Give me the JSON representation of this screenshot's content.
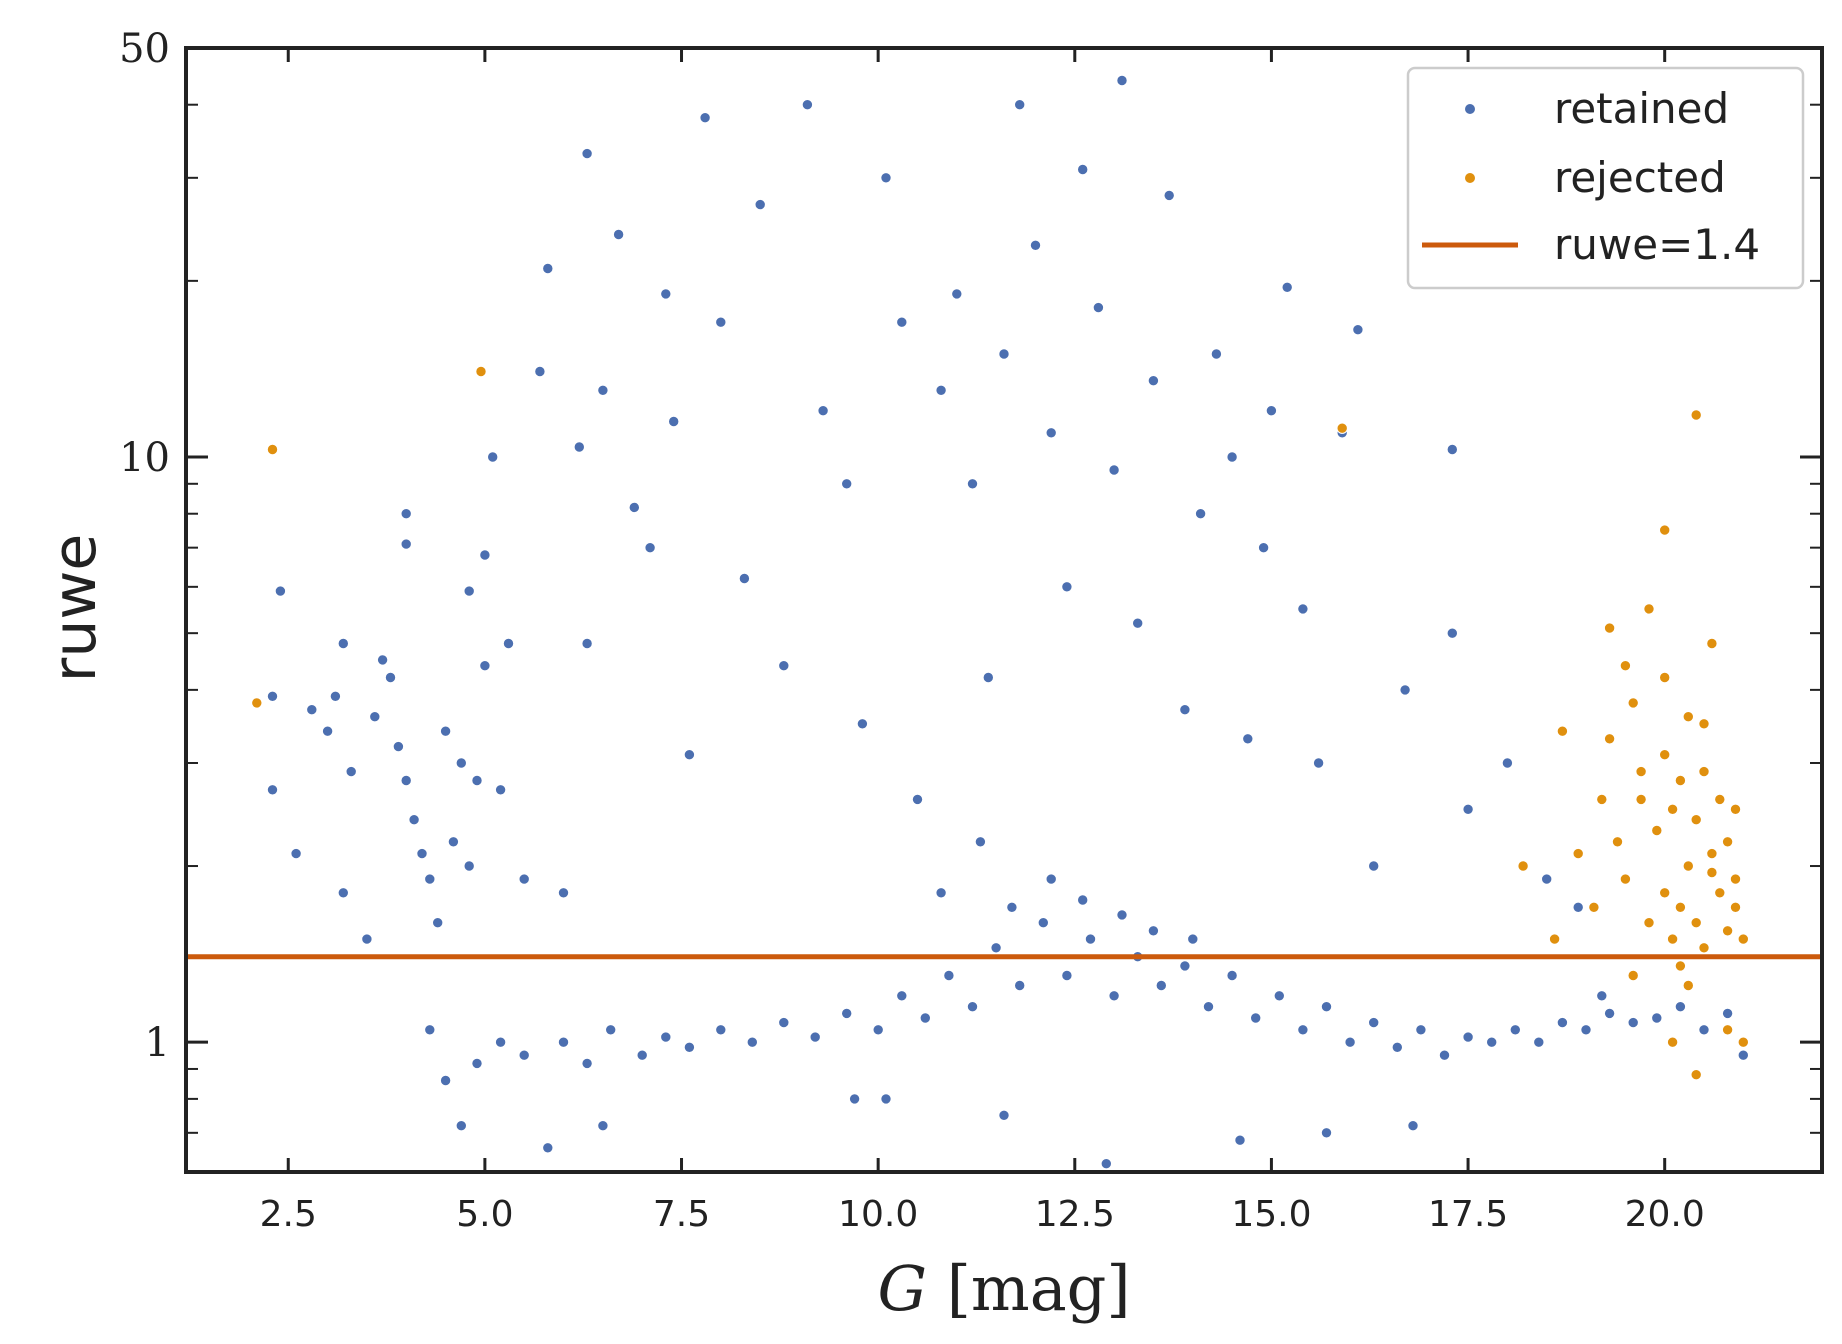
{
  "chart_data": {
    "type": "scatter",
    "title": "",
    "xlabel_italic": "G",
    "xlabel_rest": " [mag]",
    "ylabel": "ruwe",
    "xlim": [
      1.2,
      22.0
    ],
    "ylim": [
      0.6,
      50
    ],
    "yscale": "log",
    "x_ticks": [
      2.5,
      5.0,
      7.5,
      10.0,
      12.5,
      15.0,
      17.5,
      20.0
    ],
    "x_tick_labels": [
      "2.5",
      "5.0",
      "7.5",
      "10.0",
      "12.5",
      "15.0",
      "17.5",
      "20.0"
    ],
    "y_ticks": [
      1,
      10,
      50
    ],
    "y_tick_labels": [
      "1",
      "10",
      "50"
    ],
    "threshold": {
      "name": "ruwe=1.4",
      "value": 1.4,
      "color": "#cc5a0c"
    },
    "series": [
      {
        "name": "retained",
        "color": "#4c6fb0",
        "points": [
          [
            2.3,
            3.9
          ],
          [
            2.4,
            5.9
          ],
          [
            2.3,
            2.7
          ],
          [
            2.6,
            2.1
          ],
          [
            2.8,
            3.7
          ],
          [
            3.0,
            3.4
          ],
          [
            3.1,
            3.9
          ],
          [
            3.2,
            4.8
          ],
          [
            3.3,
            2.9
          ],
          [
            3.2,
            1.8
          ],
          [
            3.5,
            1.5
          ],
          [
            3.6,
            3.6
          ],
          [
            3.7,
            4.5
          ],
          [
            3.8,
            4.2
          ],
          [
            3.9,
            3.2
          ],
          [
            4.0,
            2.8
          ],
          [
            4.0,
            8.0
          ],
          [
            4.0,
            7.1
          ],
          [
            4.1,
            2.4
          ],
          [
            4.2,
            2.1
          ],
          [
            4.3,
            1.9
          ],
          [
            4.4,
            1.6
          ],
          [
            4.5,
            3.4
          ],
          [
            4.6,
            2.2
          ],
          [
            4.7,
            3.0
          ],
          [
            4.8,
            2.0
          ],
          [
            4.8,
            5.9
          ],
          [
            4.9,
            2.8
          ],
          [
            5.0,
            4.4
          ],
          [
            5.0,
            6.8
          ],
          [
            5.1,
            10.0
          ],
          [
            5.2,
            2.7
          ],
          [
            5.3,
            4.8
          ],
          [
            5.5,
            1.9
          ],
          [
            5.7,
            14.0
          ],
          [
            5.8,
            21.0
          ],
          [
            6.0,
            1.8
          ],
          [
            6.2,
            10.4
          ],
          [
            6.3,
            4.8
          ],
          [
            6.3,
            33.0
          ],
          [
            6.5,
            13.0
          ],
          [
            6.7,
            24.0
          ],
          [
            6.9,
            8.2
          ],
          [
            7.1,
            7.0
          ],
          [
            7.3,
            19.0
          ],
          [
            7.4,
            11.5
          ],
          [
            7.6,
            3.1
          ],
          [
            7.8,
            38.0
          ],
          [
            8.0,
            17.0
          ],
          [
            8.3,
            6.2
          ],
          [
            8.5,
            27.0
          ],
          [
            8.8,
            4.4
          ],
          [
            9.1,
            40.0
          ],
          [
            9.3,
            12.0
          ],
          [
            9.6,
            9.0
          ],
          [
            9.8,
            3.5
          ],
          [
            10.1,
            30.0
          ],
          [
            10.3,
            17.0
          ],
          [
            10.5,
            2.6
          ],
          [
            10.8,
            13.0
          ],
          [
            11.0,
            19.0
          ],
          [
            11.2,
            9.0
          ],
          [
            11.4,
            4.2
          ],
          [
            11.6,
            15.0
          ],
          [
            11.8,
            40.0
          ],
          [
            12.0,
            23.0
          ],
          [
            12.2,
            11.0
          ],
          [
            12.4,
            6.0
          ],
          [
            12.6,
            31.0
          ],
          [
            12.8,
            18.0
          ],
          [
            13.0,
            9.5
          ],
          [
            13.1,
            44.0
          ],
          [
            13.3,
            5.2
          ],
          [
            13.5,
            13.5
          ],
          [
            13.7,
            28.0
          ],
          [
            13.9,
            3.7
          ],
          [
            14.1,
            8.0
          ],
          [
            14.3,
            15.0
          ],
          [
            14.5,
            10.0
          ],
          [
            14.7,
            3.3
          ],
          [
            14.9,
            7.0
          ],
          [
            15.0,
            12.0
          ],
          [
            15.2,
            19.5
          ],
          [
            15.4,
            5.5
          ],
          [
            15.6,
            3.0
          ],
          [
            15.9,
            11.0
          ],
          [
            16.1,
            16.5
          ],
          [
            16.3,
            2.0
          ],
          [
            16.7,
            4.0
          ],
          [
            17.3,
            10.3
          ],
          [
            17.3,
            5.0
          ],
          [
            17.5,
            2.5
          ],
          [
            18.0,
            3.0
          ],
          [
            18.5,
            1.9
          ],
          [
            18.9,
            1.7
          ],
          [
            19.2,
            1.2
          ],
          [
            4.3,
            1.05
          ],
          [
            4.5,
            0.86
          ],
          [
            4.7,
            0.72
          ],
          [
            4.9,
            0.92
          ],
          [
            5.2,
            1.0
          ],
          [
            5.5,
            0.95
          ],
          [
            5.8,
            0.66
          ],
          [
            6.0,
            1.0
          ],
          [
            6.3,
            0.92
          ],
          [
            6.6,
            1.05
          ],
          [
            7.0,
            0.95
          ],
          [
            7.3,
            1.02
          ],
          [
            7.6,
            0.98
          ],
          [
            8.0,
            1.05
          ],
          [
            8.4,
            1.0
          ],
          [
            8.8,
            1.08
          ],
          [
            9.2,
            1.02
          ],
          [
            9.6,
            1.12
          ],
          [
            10.0,
            1.05
          ],
          [
            10.3,
            1.2
          ],
          [
            10.6,
            1.1
          ],
          [
            10.9,
            1.3
          ],
          [
            11.2,
            1.15
          ],
          [
            11.5,
            1.45
          ],
          [
            11.8,
            1.25
          ],
          [
            12.1,
            1.6
          ],
          [
            12.4,
            1.3
          ],
          [
            12.7,
            1.5
          ],
          [
            13.0,
            1.2
          ],
          [
            13.3,
            1.4
          ],
          [
            13.6,
            1.25
          ],
          [
            13.9,
            1.35
          ],
          [
            14.2,
            1.15
          ],
          [
            14.5,
            1.3
          ],
          [
            14.8,
            1.1
          ],
          [
            15.1,
            1.2
          ],
          [
            15.4,
            1.05
          ],
          [
            15.7,
            1.15
          ],
          [
            16.0,
            1.0
          ],
          [
            16.3,
            1.08
          ],
          [
            16.6,
            0.98
          ],
          [
            16.9,
            1.05
          ],
          [
            17.2,
            0.95
          ],
          [
            17.5,
            1.02
          ],
          [
            17.8,
            1.0
          ],
          [
            18.1,
            1.05
          ],
          [
            18.4,
            1.0
          ],
          [
            18.7,
            1.08
          ],
          [
            19.0,
            1.05
          ],
          [
            19.3,
            1.12
          ],
          [
            19.6,
            1.08
          ],
          [
            19.9,
            1.1
          ],
          [
            20.2,
            1.15
          ],
          [
            20.5,
            1.05
          ],
          [
            20.8,
            1.12
          ],
          [
            21.0,
            0.95
          ],
          [
            10.8,
            1.8
          ],
          [
            11.3,
            2.2
          ],
          [
            11.7,
            1.7
          ],
          [
            12.2,
            1.9
          ],
          [
            12.6,
            1.75
          ],
          [
            13.1,
            1.65
          ],
          [
            13.5,
            1.55
          ],
          [
            14.0,
            1.5
          ],
          [
            12.9,
            0.62
          ],
          [
            11.6,
            0.75
          ],
          [
            10.1,
            0.8
          ],
          [
            15.7,
            0.7
          ],
          [
            16.8,
            0.72
          ],
          [
            14.6,
            0.68
          ],
          [
            6.5,
            0.72
          ],
          [
            9.7,
            0.8
          ]
        ]
      },
      {
        "name": "rejected",
        "color": "#e0900e",
        "points": [
          [
            2.1,
            3.8
          ],
          [
            2.3,
            10.3
          ],
          [
            4.95,
            14.0
          ],
          [
            15.9,
            11.2
          ],
          [
            20.4,
            11.8
          ],
          [
            20.0,
            7.5
          ],
          [
            18.7,
            3.4
          ],
          [
            18.2,
            2.0
          ],
          [
            18.6,
            1.5
          ],
          [
            18.9,
            2.1
          ],
          [
            19.1,
            1.7
          ],
          [
            19.2,
            2.6
          ],
          [
            19.3,
            3.3
          ],
          [
            19.4,
            2.2
          ],
          [
            19.5,
            1.9
          ],
          [
            19.6,
            3.8
          ],
          [
            19.7,
            2.9
          ],
          [
            19.8,
            5.5
          ],
          [
            19.8,
            1.6
          ],
          [
            19.9,
            2.3
          ],
          [
            20.0,
            1.8
          ],
          [
            20.0,
            3.1
          ],
          [
            20.1,
            2.5
          ],
          [
            20.1,
            1.5
          ],
          [
            20.2,
            2.8
          ],
          [
            20.2,
            1.7
          ],
          [
            20.3,
            3.6
          ],
          [
            20.3,
            2.0
          ],
          [
            20.4,
            2.4
          ],
          [
            20.4,
            1.6
          ],
          [
            20.5,
            2.9
          ],
          [
            20.5,
            1.45
          ],
          [
            20.6,
            4.8
          ],
          [
            20.6,
            2.1
          ],
          [
            20.7,
            1.8
          ],
          [
            20.7,
            2.6
          ],
          [
            20.8,
            1.55
          ],
          [
            20.8,
            2.2
          ],
          [
            20.9,
            1.7
          ],
          [
            20.9,
            2.5
          ],
          [
            21.0,
            1.5
          ],
          [
            21.0,
            1.0
          ],
          [
            20.8,
            1.05
          ],
          [
            20.4,
            0.88
          ],
          [
            20.1,
            1.0
          ],
          [
            19.6,
            1.3
          ],
          [
            20.3,
            1.25
          ],
          [
            19.3,
            5.1
          ],
          [
            19.5,
            4.4
          ],
          [
            20.9,
            1.9
          ],
          [
            20.5,
            3.5
          ],
          [
            20.0,
            4.2
          ],
          [
            19.7,
            2.6
          ],
          [
            20.6,
            1.95
          ],
          [
            20.2,
            1.35
          ]
        ]
      }
    ],
    "legend": {
      "position": "top-right",
      "entries": [
        "retained",
        "rejected",
        "ruwe=1.4"
      ]
    }
  }
}
